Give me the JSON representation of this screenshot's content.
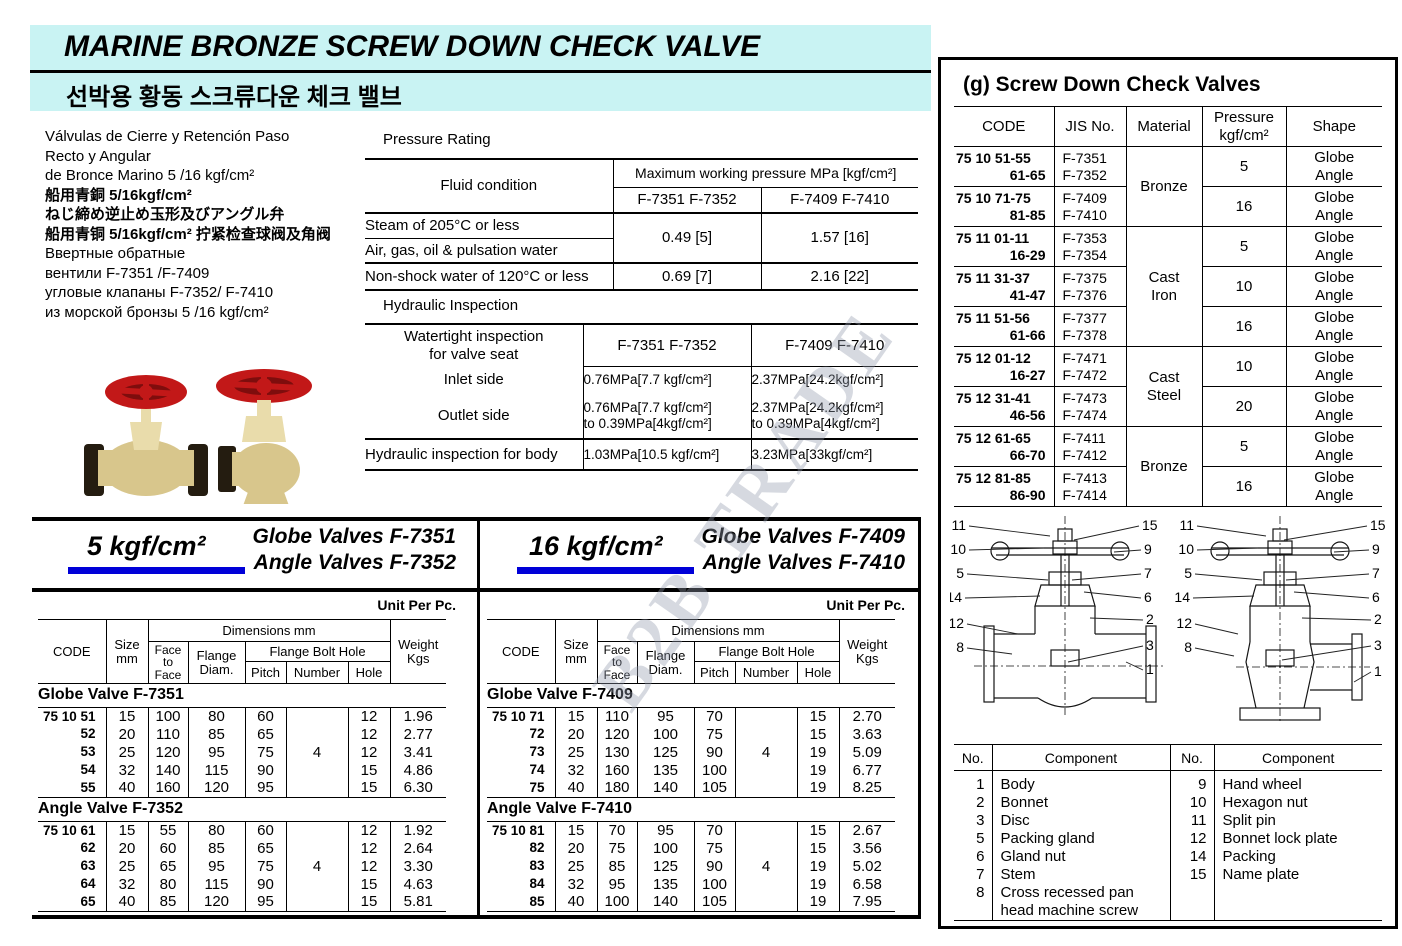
{
  "header": {
    "title_en": "MARINE BRONZE SCREW DOWN CHECK VALVE",
    "title_ko": "선박용 황동 스크류다운 체크 밸브"
  },
  "watermark": "B2B TRADE",
  "colors": {
    "band": "#c9f3f3",
    "accent_blue": "#0000d8",
    "wheel_red": "#c21818",
    "brass": "#d8c68c"
  },
  "description_lines": [
    "Válvulas de Cierre y Retención Paso",
    "Recto y Angular",
    "de Bronce Marino 5 /16 kgf/cm²",
    "船用青銅 5/16kgf/cm²",
    "ねじ締め逆止め玉形及びアングル弁",
    "船用青铜 5/16kgf/cm² 拧紧检查球阀及角阀",
    "Ввертные обратные",
    "вентили F-7351 /F-7409",
    "угловые клапаны F-7352/ F-7410",
    "из морской бронзы 5 /16 kgf/cm²"
  ],
  "pressure_rating": {
    "title": "Pressure Rating",
    "fluid_condition": "Fluid condition",
    "max_working": "Maximum working pressure  MPa [kgf/cm²]",
    "col_a": "F-7351 F-7352",
    "col_b": "F-7409 F-7410",
    "steam_label": "Steam of 205°C or less",
    "air_label": "Air, gas, oil & pulsation water",
    "nonshock_label": "Non-shock water of 120°C or less",
    "steam_a": "0.49 [5]",
    "steam_b": "1.57 [16]",
    "nonshock_a": "0.69 [7]",
    "nonshock_b": "2.16 [22]"
  },
  "hydraulic_inspection": {
    "title": "Hydraulic Inspection",
    "watertight_l1": "Watertight inspection",
    "watertight_l2": "for valve seat",
    "col_a": "F-7351 F-7352",
    "col_b": "F-7409 F-7410",
    "inlet_label": "Inlet side",
    "inlet_a": "0.76MPa[7.7 kgf/cm²]",
    "inlet_b": "2.37MPa[24.2kgf/cm²]",
    "outlet_label": "Outlet side",
    "outlet_a1": "0.76MPa[7.7 kgf/cm²]",
    "outlet_a2": "to 0.39MPa[4kgf/cm²]",
    "outlet_b1": "2.37MPa[24.2kgf/cm²]",
    "outlet_b2": "to 0.39MPa[4kgf/cm²]",
    "body_label": "Hydraulic inspection for body",
    "body_a": "1.03MPa[10.5 kgf/cm²]",
    "body_b": "3.23MPa[33kgf/cm²]"
  },
  "spec_panel": {
    "title": "(g) Screw Down Check Valves",
    "headers": {
      "code": "CODE",
      "jis": "JIS No.",
      "material": "Material",
      "pressure_l1": "Pressure",
      "pressure_l2": "kgf/cm²",
      "shape": "Shape"
    },
    "rows": [
      {
        "code1": "75 10 51-55",
        "code2": "61-65",
        "jis1": "F-7351",
        "jis2": "F-7352",
        "material": [
          "Bronze"
        ],
        "material_span": 2,
        "pressure": "5",
        "shape1": "Globe",
        "shape2": "Angle"
      },
      {
        "code1": "75 10 71-75",
        "code2": "81-85",
        "jis1": "F-7409",
        "jis2": "F-7410",
        "pressure": "16",
        "shape1": "Globe",
        "shape2": "Angle"
      },
      {
        "code1": "75 11 01-11",
        "code2": "16-29",
        "jis1": "F-7353",
        "jis2": "F-7354",
        "material": [
          "Cast",
          "Iron"
        ],
        "material_span": 3,
        "pressure": "5",
        "shape1": "Globe",
        "shape2": "Angle"
      },
      {
        "code1": "75 11 31-37",
        "code2": "41-47",
        "jis1": "F-7375",
        "jis2": "F-7376",
        "pressure": "10",
        "shape1": "Globe",
        "shape2": "Angle"
      },
      {
        "code1": "75 11 51-56",
        "code2": "61-66",
        "jis1": "F-7377",
        "jis2": "F-7378",
        "pressure": "16",
        "shape1": "Globe",
        "shape2": "Angle"
      },
      {
        "code1": "75 12 01-12",
        "code2": "16-27",
        "jis1": "F-7471",
        "jis2": "F-7472",
        "material": [
          "Cast",
          "Steel"
        ],
        "material_span": 2,
        "pressure": "10",
        "shape1": "Globe",
        "shape2": "Angle"
      },
      {
        "code1": "75 12 31-41",
        "code2": "46-56",
        "jis1": "F-7473",
        "jis2": "F-7474",
        "pressure": "20",
        "shape1": "Globe",
        "shape2": "Angle"
      },
      {
        "code1": "75 12 61-65",
        "code2": "66-70",
        "jis1": "F-7411",
        "jis2": "F-7412",
        "material": [
          "Bronze"
        ],
        "material_span": 2,
        "pressure": "5",
        "shape1": "Globe",
        "shape2": "Angle"
      },
      {
        "code1": "75 12 81-85",
        "code2": "86-90",
        "jis1": "F-7413",
        "jis2": "F-7414",
        "pressure": "16",
        "shape1": "Globe",
        "shape2": "Angle"
      }
    ]
  },
  "dim_headers": {
    "code": "CODE",
    "size": [
      "Size",
      "mm"
    ],
    "dims": "Dimensions mm",
    "ftf": [
      "Face",
      "to",
      "Face"
    ],
    "flange": [
      "Flange",
      "Diam."
    ],
    "fbh": "Flange Bolt Hole",
    "pitch": "Pitch",
    "number": "Number",
    "hole": "Hole",
    "weight": [
      "Weight",
      "Kgs"
    ]
  },
  "table_5kgf": {
    "pressure_label": "5 kgf/cm²",
    "valve_title_1": "Globe Valves F-7351",
    "valve_title_2": "Angle Valves F-7352",
    "unit": "Unit Per Pc.",
    "sections": [
      {
        "label": "Globe Valve F-7351",
        "number": "4",
        "rows": [
          {
            "code": "75 10 51",
            "size": "15",
            "ftf": "100",
            "flange": "80",
            "pitch": "60",
            "hole": "12",
            "weight": "1.96"
          },
          {
            "code": "52",
            "size": "20",
            "ftf": "110",
            "flange": "85",
            "pitch": "65",
            "hole": "12",
            "weight": "2.77"
          },
          {
            "code": "53",
            "size": "25",
            "ftf": "120",
            "flange": "95",
            "pitch": "75",
            "hole": "12",
            "weight": "3.41"
          },
          {
            "code": "54",
            "size": "32",
            "ftf": "140",
            "flange": "115",
            "pitch": "90",
            "hole": "15",
            "weight": "4.86"
          },
          {
            "code": "55",
            "size": "40",
            "ftf": "160",
            "flange": "120",
            "pitch": "95",
            "hole": "15",
            "weight": "6.30"
          }
        ]
      },
      {
        "label": "Angle Valve F-7352",
        "number": "4",
        "rows": [
          {
            "code": "75 10 61",
            "size": "15",
            "ftf": "55",
            "flange": "80",
            "pitch": "60",
            "hole": "12",
            "weight": "1.92"
          },
          {
            "code": "62",
            "size": "20",
            "ftf": "60",
            "flange": "85",
            "pitch": "65",
            "hole": "12",
            "weight": "2.64"
          },
          {
            "code": "63",
            "size": "25",
            "ftf": "65",
            "flange": "95",
            "pitch": "75",
            "hole": "12",
            "weight": "3.30"
          },
          {
            "code": "64",
            "size": "32",
            "ftf": "80",
            "flange": "115",
            "pitch": "90",
            "hole": "15",
            "weight": "4.63"
          },
          {
            "code": "65",
            "size": "40",
            "ftf": "85",
            "flange": "120",
            "pitch": "95",
            "hole": "15",
            "weight": "5.81"
          }
        ]
      }
    ]
  },
  "table_16kgf": {
    "pressure_label": "16 kgf/cm²",
    "valve_title_1": "Globe Valves F-7409",
    "valve_title_2": "Angle Valves F-7410",
    "unit": "Unit Per Pc.",
    "sections": [
      {
        "label": "Globe Valve F-7409",
        "number": "4",
        "rows": [
          {
            "code": "75 10 71",
            "size": "15",
            "ftf": "110",
            "flange": "95",
            "pitch": "70",
            "hole": "15",
            "weight": "2.70"
          },
          {
            "code": "72",
            "size": "20",
            "ftf": "120",
            "flange": "100",
            "pitch": "75",
            "hole": "15",
            "weight": "3.63"
          },
          {
            "code": "73",
            "size": "25",
            "ftf": "130",
            "flange": "125",
            "pitch": "90",
            "hole": "19",
            "weight": "5.09"
          },
          {
            "code": "74",
            "size": "32",
            "ftf": "160",
            "flange": "135",
            "pitch": "100",
            "hole": "19",
            "weight": "6.77"
          },
          {
            "code": "75",
            "size": "40",
            "ftf": "180",
            "flange": "140",
            "pitch": "105",
            "hole": "19",
            "weight": "8.25"
          }
        ]
      },
      {
        "label": "Angle Valve F-7410",
        "number": "4",
        "rows": [
          {
            "code": "75 10 81",
            "size": "15",
            "ftf": "70",
            "flange": "95",
            "pitch": "70",
            "hole": "15",
            "weight": "2.67"
          },
          {
            "code": "82",
            "size": "20",
            "ftf": "75",
            "flange": "100",
            "pitch": "75",
            "hole": "15",
            "weight": "3.56"
          },
          {
            "code": "83",
            "size": "25",
            "ftf": "85",
            "flange": "125",
            "pitch": "90",
            "hole": "19",
            "weight": "5.02"
          },
          {
            "code": "84",
            "size": "32",
            "ftf": "95",
            "flange": "135",
            "pitch": "100",
            "hole": "19",
            "weight": "6.58"
          },
          {
            "code": "85",
            "size": "40",
            "ftf": "100",
            "flange": "140",
            "pitch": "105",
            "hole": "19",
            "weight": "7.95"
          }
        ]
      }
    ]
  },
  "component_table": {
    "headers": {
      "no": "No.",
      "component": "Component"
    },
    "left": [
      [
        "1",
        "Body"
      ],
      [
        "2",
        "Bonnet"
      ],
      [
        "3",
        "Disc"
      ],
      [
        "5",
        "Packing gland"
      ],
      [
        "6",
        "Gland nut"
      ],
      [
        "7",
        "Stem"
      ],
      [
        "8",
        "Cross recessed pan|head machine screw"
      ]
    ],
    "right": [
      [
        "9",
        "Hand wheel"
      ],
      [
        "10",
        "Hexagon nut"
      ],
      [
        "11",
        "Split pin"
      ],
      [
        "12",
        "Bonnet lock plate"
      ],
      [
        "14",
        "Packing"
      ],
      [
        "15",
        "Name plate"
      ]
    ]
  },
  "diagram": {
    "left_numbers": [
      "11",
      "10",
      "5",
      "14",
      "12",
      "8"
    ],
    "right_numbers": [
      "15",
      "9",
      "7",
      "6",
      "2",
      "3",
      "1"
    ]
  }
}
